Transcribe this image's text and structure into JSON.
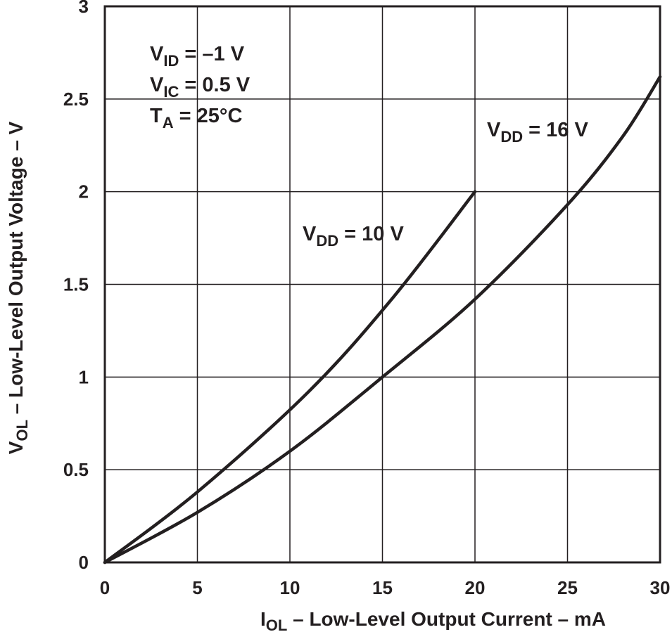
{
  "chart_data": {
    "type": "line",
    "xlabel": {
      "main": "I",
      "sub": "OL",
      "rest": " – Low-Level Output Current – mA"
    },
    "ylabel": {
      "main": "V",
      "sub": "OL",
      "rest": " – Low-Level Output Voltage – V"
    },
    "xlim": [
      0,
      30
    ],
    "ylim": [
      0,
      3
    ],
    "x_ticks": [
      0,
      5,
      10,
      15,
      20,
      25,
      30
    ],
    "y_ticks": [
      0,
      0.5,
      1,
      1.5,
      2,
      2.5,
      3
    ],
    "x_tick_labels": [
      "0",
      "5",
      "10",
      "15",
      "20",
      "25",
      "30"
    ],
    "y_tick_labels": [
      "0",
      "0.5",
      "1",
      "1.5",
      "2",
      "2.5",
      "3"
    ],
    "grid": true,
    "conditions": [
      {
        "main": "V",
        "sub": "ID",
        "rest": " = –1 V"
      },
      {
        "main": "V",
        "sub": "IC",
        "rest": " = 0.5 V"
      },
      {
        "main": "T",
        "sub": "A",
        "rest": " = 25°C"
      }
    ],
    "series": [
      {
        "label": {
          "main": "V",
          "sub": "DD",
          "rest": " = 10 V"
        },
        "x": [
          0,
          5,
          11,
          15.5,
          20
        ],
        "y": [
          0,
          0.38,
          0.92,
          1.42,
          2.0
        ]
      },
      {
        "label": {
          "main": "V",
          "sub": "DD",
          "rest": " = 16 V"
        },
        "x": [
          0,
          5,
          10,
          15,
          20,
          25,
          28,
          30
        ],
        "y": [
          0,
          0.27,
          0.6,
          1.0,
          1.42,
          1.93,
          2.3,
          2.62
        ]
      }
    ],
    "line_color": "#231f20"
  }
}
